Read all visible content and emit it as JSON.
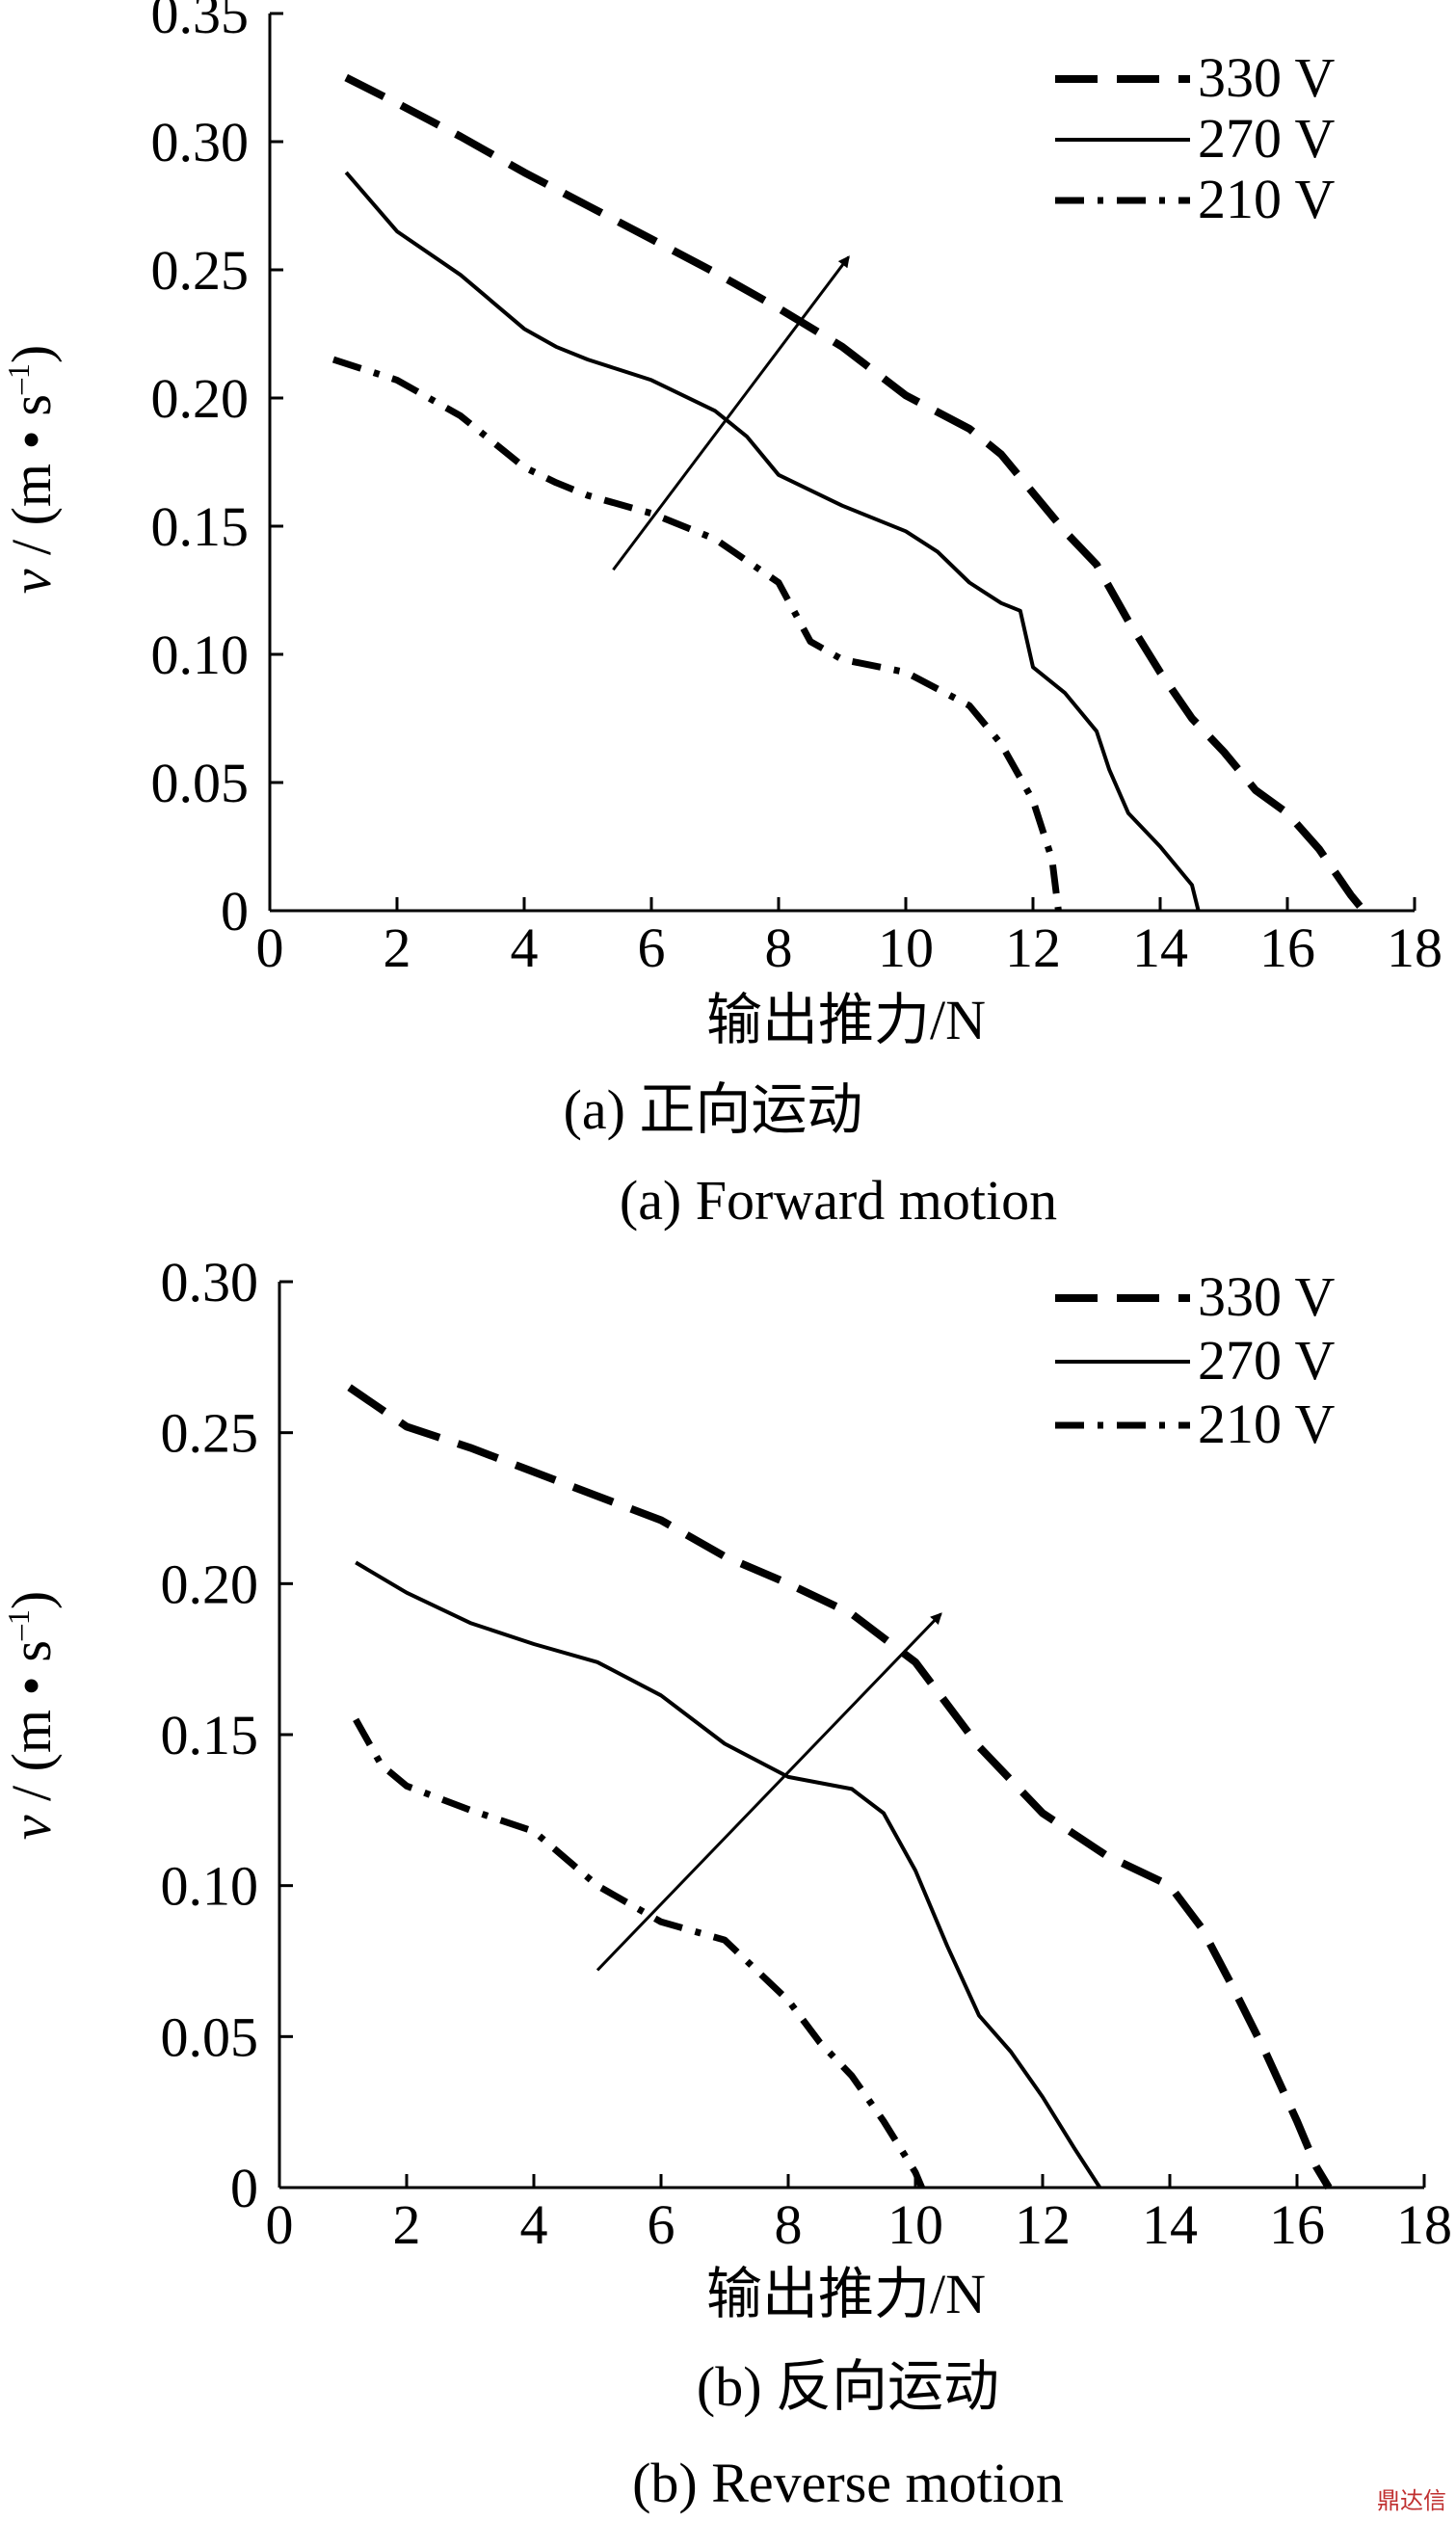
{
  "chart_data": [
    {
      "type": "line",
      "panel_label": "(a) 正向运动",
      "caption": "(a) Forward motion",
      "xlabel": "输出推力/N",
      "ylabel_v": "v",
      "ylabel_rest": " / (m • s",
      "ylabel_exp": "–1",
      "ylabel_close": ")",
      "xlim": [
        0,
        18
      ],
      "ylim": [
        0,
        0.35
      ],
      "xticks": [
        "0",
        "2",
        "4",
        "6",
        "8",
        "10",
        "12",
        "14",
        "16",
        "18"
      ],
      "yticks": [
        "0",
        "0.05",
        "0.10",
        "0.15",
        "0.20",
        "0.25",
        "0.30",
        "0.35"
      ],
      "legend_position": "top-right",
      "arrow": {
        "from": [
          5.4,
          0.133
        ],
        "to": [
          9.1,
          0.255
        ]
      },
      "series": [
        {
          "name": "330 V",
          "style": "dashed",
          "x": [
            1.2,
            2,
            3,
            4,
            5,
            6,
            7,
            8,
            9,
            10,
            11,
            11.5,
            12,
            12.5,
            13,
            13.5,
            14,
            14.5,
            15,
            15.5,
            16,
            16.5,
            17.0,
            17.2
          ],
          "y": [
            0.325,
            0.315,
            0.302,
            0.288,
            0.275,
            0.262,
            0.249,
            0.235,
            0.22,
            0.201,
            0.188,
            0.178,
            0.163,
            0.148,
            0.135,
            0.113,
            0.093,
            0.075,
            0.062,
            0.047,
            0.038,
            0.024,
            0.006,
            0
          ]
        },
        {
          "name": "270 V",
          "style": "solid",
          "x": [
            1.2,
            2,
            3,
            4,
            4.5,
            5,
            6,
            7,
            7.5,
            8,
            9,
            10,
            10.5,
            11,
            11.5,
            11.8,
            12,
            12.5,
            13,
            13.2,
            13.5,
            14,
            14.5,
            14.6
          ],
          "y": [
            0.288,
            0.265,
            0.248,
            0.227,
            0.22,
            0.215,
            0.207,
            0.195,
            0.185,
            0.17,
            0.158,
            0.148,
            0.14,
            0.128,
            0.12,
            0.117,
            0.095,
            0.085,
            0.07,
            0.055,
            0.038,
            0.025,
            0.01,
            0
          ]
        },
        {
          "name": "210 V",
          "style": "dashdot",
          "x": [
            1.0,
            2,
            3,
            4,
            4.5,
            5,
            6,
            7,
            8,
            8.5,
            9,
            10,
            11,
            11.5,
            12,
            12.3,
            12.4
          ],
          "y": [
            0.215,
            0.207,
            0.193,
            0.173,
            0.167,
            0.162,
            0.155,
            0.145,
            0.128,
            0.105,
            0.098,
            0.093,
            0.08,
            0.065,
            0.043,
            0.02,
            0
          ]
        }
      ]
    },
    {
      "type": "line",
      "panel_label": "(b) 反向运动",
      "caption": "(b) Reverse motion",
      "xlabel": "输出推力/N",
      "ylabel_v": "v",
      "ylabel_rest": " / (m • s",
      "ylabel_exp": "–1",
      "ylabel_close": ")",
      "xlim": [
        0,
        18
      ],
      "ylim": [
        0,
        0.3
      ],
      "xticks": [
        "0",
        "2",
        "4",
        "6",
        "8",
        "10",
        "12",
        "14",
        "16",
        "18"
      ],
      "yticks": [
        "0",
        "0.05",
        "0.10",
        "0.15",
        "0.20",
        "0.25",
        "0.30"
      ],
      "legend_position": "top-right",
      "arrow": {
        "from": [
          5.0,
          0.072
        ],
        "to": [
          10.4,
          0.19
        ]
      },
      "series": [
        {
          "name": "330 V",
          "style": "dashed",
          "x": [
            1.1,
            2,
            3,
            4,
            5,
            6,
            7,
            8,
            9,
            10,
            11,
            12,
            13,
            14,
            14.5,
            15,
            15.5,
            16,
            16.3,
            16.5
          ],
          "y": [
            0.265,
            0.252,
            0.245,
            0.237,
            0.229,
            0.221,
            0.209,
            0.2,
            0.19,
            0.174,
            0.146,
            0.124,
            0.11,
            0.1,
            0.086,
            0.066,
            0.045,
            0.022,
            0.007,
            0
          ]
        },
        {
          "name": "270 V",
          "style": "solid",
          "x": [
            1.2,
            2,
            3,
            4,
            5,
            6,
            7,
            8,
            9,
            9.5,
            10,
            10.5,
            11,
            11.5,
            12,
            12.5,
            12.9
          ],
          "y": [
            0.207,
            0.197,
            0.187,
            0.18,
            0.174,
            0.163,
            0.147,
            0.136,
            0.132,
            0.124,
            0.105,
            0.08,
            0.057,
            0.045,
            0.03,
            0.013,
            0
          ]
        },
        {
          "name": "210 V",
          "style": "dashdot",
          "x": [
            1.2,
            1.6,
            2,
            3,
            4,
            5,
            6,
            7,
            7.5,
            8,
            8.5,
            9,
            9.5,
            10,
            10.1
          ],
          "y": [
            0.155,
            0.14,
            0.133,
            0.125,
            0.118,
            0.1,
            0.088,
            0.082,
            0.072,
            0.062,
            0.048,
            0.037,
            0.022,
            0.005,
            0
          ]
        }
      ]
    }
  ],
  "watermark": "鼎达信"
}
